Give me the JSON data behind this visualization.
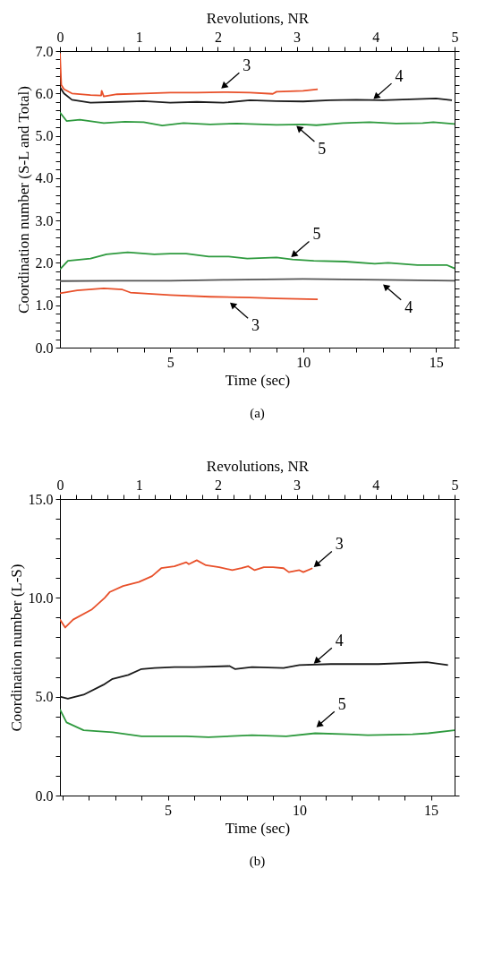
{
  "chart_data": [
    {
      "type": "line",
      "xlabel": "Time (sec)",
      "ylabel": "Coordination number (S-L and Total)",
      "x2label": "Revolutions, NR",
      "xlim": [
        0.85,
        15.7
      ],
      "ylim": [
        0,
        7
      ],
      "x2lim": [
        0,
        5
      ],
      "xticks": [
        {
          "value": 2,
          "label": null
        },
        {
          "value": 3,
          "label": null
        },
        {
          "value": 4,
          "label": null
        },
        5,
        {
          "value": 6,
          "label": null
        },
        {
          "value": 7,
          "label": null
        },
        {
          "value": 8,
          "label": null
        },
        {
          "value": 9,
          "label": null
        },
        10,
        {
          "value": 11,
          "label": null
        },
        {
          "value": 12,
          "label": null
        },
        {
          "value": 13,
          "label": null
        },
        {
          "value": 14,
          "label": null
        },
        15
      ],
      "yticks": [
        {
          "value": 0,
          "label": "0.0"
        },
        {
          "value": 0.2,
          "label": null
        },
        {
          "value": 0.4,
          "label": null
        },
        {
          "value": 0.6,
          "label": null
        },
        {
          "value": 0.8,
          "label": null
        },
        {
          "value": 1,
          "label": "1.0"
        },
        {
          "value": 1.2,
          "label": null
        },
        {
          "value": 1.4,
          "label": null
        },
        {
          "value": 1.6,
          "label": null
        },
        {
          "value": 1.8,
          "label": null
        },
        {
          "value": 2,
          "label": "2.0"
        },
        {
          "value": 2.2,
          "label": null
        },
        {
          "value": 2.4,
          "label": null
        },
        {
          "value": 2.6,
          "label": null
        },
        {
          "value": 2.8,
          "label": null
        },
        {
          "value": 3,
          "label": "3.0"
        },
        {
          "value": 3.2,
          "label": null
        },
        {
          "value": 3.4,
          "label": null
        },
        {
          "value": 3.6,
          "label": null
        },
        {
          "value": 3.8,
          "label": null
        },
        {
          "value": 4,
          "label": "4.0"
        },
        {
          "value": 4.2,
          "label": null
        },
        {
          "value": 4.4,
          "label": null
        },
        {
          "value": 4.6,
          "label": null
        },
        {
          "value": 4.8,
          "label": null
        },
        {
          "value": 5,
          "label": "5.0"
        },
        {
          "value": 5.2,
          "label": null
        },
        {
          "value": 5.4,
          "label": null
        },
        {
          "value": 5.6,
          "label": null
        },
        {
          "value": 5.8,
          "label": null
        },
        {
          "value": 6,
          "label": "6.0"
        },
        {
          "value": 6.2,
          "label": null
        },
        {
          "value": 6.4,
          "label": null
        },
        {
          "value": 6.6,
          "label": null
        },
        {
          "value": 6.8,
          "label": null
        },
        {
          "value": 7,
          "label": "7.0"
        }
      ],
      "x2ticks": [
        0,
        {
          "value": 0.2,
          "label": null
        },
        {
          "value": 0.4,
          "label": null
        },
        {
          "value": 0.6,
          "label": null
        },
        {
          "value": 0.8,
          "label": null
        },
        1,
        {
          "value": 1.2,
          "label": null
        },
        {
          "value": 1.4,
          "label": null
        },
        {
          "value": 1.6,
          "label": null
        },
        {
          "value": 1.8,
          "label": null
        },
        2,
        {
          "value": 2.2,
          "label": null
        },
        {
          "value": 2.4,
          "label": null
        },
        {
          "value": 2.6,
          "label": null
        },
        {
          "value": 2.8,
          "label": null
        },
        3,
        {
          "value": 3.2,
          "label": null
        },
        {
          "value": 3.4,
          "label": null
        },
        {
          "value": 3.6,
          "label": null
        },
        {
          "value": 3.8,
          "label": null
        },
        4,
        {
          "value": 4.2,
          "label": null
        },
        {
          "value": 4.4,
          "label": null
        },
        {
          "value": 4.6,
          "label": null
        },
        {
          "value": 4.8,
          "label": null
        },
        5
      ],
      "series": [
        {
          "color": "#e8502a",
          "x": [
            0.85,
            0.9,
            1.0,
            1.3,
            2.0,
            2.4,
            2.42,
            2.5,
            3.0,
            4.0,
            5.0,
            6.0,
            7.0,
            8.0,
            8.86,
            9.0,
            10.0,
            10.55
          ],
          "values": [
            6.95,
            6.2,
            6.1,
            6.0,
            5.96,
            5.95,
            6.06,
            5.93,
            5.98,
            6.0,
            6.02,
            6.02,
            6.03,
            6.02,
            5.99,
            6.04,
            6.06,
            6.1
          ]
        },
        {
          "color": "#1a1a1a",
          "x": [
            0.85,
            1.0,
            1.3,
            2,
            3,
            4,
            5,
            6,
            7,
            8,
            9,
            10,
            11,
            12,
            13,
            14,
            15,
            15.6
          ],
          "values": [
            6.15,
            6.0,
            5.85,
            5.78,
            5.8,
            5.82,
            5.78,
            5.8,
            5.78,
            5.84,
            5.82,
            5.81,
            5.84,
            5.85,
            5.84,
            5.86,
            5.88,
            5.84
          ]
        },
        {
          "color": "#2e9a3e",
          "x": [
            0.85,
            1.1,
            1.6,
            2.5,
            3.3,
            4.0,
            4.7,
            5.5,
            6.5,
            7.5,
            9.0,
            10.0,
            10.5,
            11.5,
            12.5,
            13.5,
            14.5,
            14.9,
            15.7
          ],
          "values": [
            5.55,
            5.35,
            5.38,
            5.3,
            5.33,
            5.32,
            5.24,
            5.3,
            5.27,
            5.29,
            5.26,
            5.27,
            5.25,
            5.3,
            5.32,
            5.29,
            5.3,
            5.32,
            5.28
          ]
        },
        {
          "color": "#2e9a3e",
          "x": [
            0.85,
            1.15,
            2.0,
            2.6,
            3.4,
            4.4,
            5.0,
            5.6,
            6.45,
            7.2,
            7.9,
            9.0,
            9.6,
            10.4,
            11.6,
            12.7,
            13.2,
            14.3,
            15.4,
            15.7
          ],
          "values": [
            1.85,
            2.05,
            2.1,
            2.2,
            2.25,
            2.2,
            2.22,
            2.22,
            2.15,
            2.15,
            2.1,
            2.13,
            2.08,
            2.05,
            2.03,
            1.98,
            2.0,
            1.95,
            1.95,
            1.87
          ]
        },
        {
          "color": "#555555",
          "x": [
            0.85,
            3,
            5,
            7,
            10,
            13,
            15.7
          ],
          "values": [
            1.57,
            1.58,
            1.58,
            1.6,
            1.62,
            1.6,
            1.58
          ]
        },
        {
          "color": "#e8502a",
          "x": [
            0.85,
            1.5,
            2.5,
            3.2,
            3.5,
            5.0,
            6.5,
            8.0,
            9.0,
            10.55
          ],
          "values": [
            1.28,
            1.35,
            1.4,
            1.37,
            1.3,
            1.24,
            1.2,
            1.18,
            1.16,
            1.14
          ]
        }
      ],
      "annotations": [
        {
          "text": "3",
          "x": 6.87,
          "y": 6.09
        },
        {
          "text": "4",
          "x": 12.6,
          "y": 5.84
        },
        {
          "text": "5",
          "x": 9.7,
          "y": 5.26
        },
        {
          "text": "5",
          "x": 9.5,
          "y": 2.11
        },
        {
          "text": "4",
          "x": 12.96,
          "y": 1.52
        },
        {
          "text": "3",
          "x": 7.2,
          "y": 1.09
        },
        "(a)"
      ]
    },
    {
      "type": "line",
      "xlabel": "Time (sec)",
      "ylabel": "Coordination number (L-S)",
      "x2label": "Revolutions, NR",
      "xlim": [
        0.9,
        15.9
      ],
      "ylim": [
        0,
        15
      ],
      "x2lim": [
        0,
        5
      ],
      "xticks": [
        {
          "value": 1,
          "label": null
        },
        {
          "value": 2,
          "label": null
        },
        {
          "value": 3,
          "label": null
        },
        {
          "value": 4,
          "label": null
        },
        5,
        {
          "value": 6,
          "label": null
        },
        {
          "value": 7,
          "label": null
        },
        {
          "value": 8,
          "label": null
        },
        {
          "value": 9,
          "label": null
        },
        10,
        {
          "value": 11,
          "label": null
        },
        {
          "value": 12,
          "label": null
        },
        {
          "value": 13,
          "label": null
        },
        {
          "value": 14,
          "label": null
        },
        15
      ],
      "yticks": [
        {
          "value": 0,
          "label": "0.0"
        },
        {
          "value": 1,
          "label": null
        },
        {
          "value": 2,
          "label": null
        },
        {
          "value": 3,
          "label": null
        },
        {
          "value": 4,
          "label": null
        },
        {
          "value": 5,
          "label": "5.0"
        },
        {
          "value": 6,
          "label": null
        },
        {
          "value": 7,
          "label": null
        },
        {
          "value": 8,
          "label": null
        },
        {
          "value": 9,
          "label": null
        },
        {
          "value": 10,
          "label": "10.0"
        },
        {
          "value": 11,
          "label": null
        },
        {
          "value": 12,
          "label": null
        },
        {
          "value": 13,
          "label": null
        },
        {
          "value": 14,
          "label": null
        },
        {
          "value": 15,
          "label": "15.0"
        }
      ],
      "x2ticks": [
        0,
        {
          "value": 0.2,
          "label": null
        },
        {
          "value": 0.4,
          "label": null
        },
        {
          "value": 0.6,
          "label": null
        },
        {
          "value": 0.8,
          "label": null
        },
        1,
        {
          "value": 1.2,
          "label": null
        },
        {
          "value": 1.4,
          "label": null
        },
        {
          "value": 1.6,
          "label": null
        },
        {
          "value": 1.8,
          "label": null
        },
        2,
        {
          "value": 2.2,
          "label": null
        },
        {
          "value": 2.4,
          "label": null
        },
        {
          "value": 2.6,
          "label": null
        },
        {
          "value": 2.8,
          "label": null
        },
        3,
        {
          "value": 3.2,
          "label": null
        },
        {
          "value": 3.4,
          "label": null
        },
        {
          "value": 3.6,
          "label": null
        },
        {
          "value": 3.8,
          "label": null
        },
        4,
        {
          "value": 4.2,
          "label": null
        },
        {
          "value": 4.4,
          "label": null
        },
        {
          "value": 4.6,
          "label": null
        },
        {
          "value": 4.8,
          "label": null
        },
        5
      ],
      "series": [
        {
          "color": "#e8502a",
          "x": [
            0.9,
            1.1,
            1.4,
            2.1,
            2.6,
            2.8,
            3.3,
            3.9,
            4.4,
            4.75,
            5.25,
            5.7,
            5.8,
            6.1,
            6.45,
            6.95,
            7.45,
            7.8,
            8.05,
            8.3,
            8.65,
            9.0,
            9.4,
            9.6,
            10.0,
            10.15,
            10.5
          ],
          "values": [
            8.9,
            8.5,
            8.9,
            9.4,
            10.0,
            10.3,
            10.6,
            10.8,
            11.1,
            11.5,
            11.6,
            11.8,
            11.7,
            11.9,
            11.65,
            11.55,
            11.4,
            11.5,
            11.6,
            11.4,
            11.55,
            11.55,
            11.5,
            11.3,
            11.4,
            11.3,
            11.5
          ]
        },
        {
          "color": "#1a1a1a",
          "x": [
            0.9,
            1.2,
            1.8,
            2.55,
            2.9,
            3.5,
            4.0,
            4.5,
            5.25,
            6.0,
            7.35,
            7.55,
            8.2,
            9.4,
            10.0,
            11.2,
            13.0,
            14.85,
            15.65
          ],
          "values": [
            5.0,
            4.9,
            5.1,
            5.6,
            5.9,
            6.1,
            6.4,
            6.45,
            6.5,
            6.5,
            6.55,
            6.4,
            6.5,
            6.45,
            6.6,
            6.65,
            6.65,
            6.75,
            6.6
          ]
        },
        {
          "color": "#2e9a3e",
          "x": [
            0.9,
            1.15,
            1.8,
            2.9,
            4.0,
            5.7,
            6.55,
            8.2,
            9.5,
            10.6,
            11.85,
            12.6,
            14.3,
            14.9,
            15.9
          ],
          "values": [
            4.35,
            3.7,
            3.3,
            3.2,
            3.0,
            3.0,
            2.95,
            3.05,
            3.0,
            3.15,
            3.1,
            3.05,
            3.1,
            3.15,
            3.3
          ]
        }
      ],
      "annotations": [
        {
          "text": "3",
          "x": 10.5,
          "y": 11.5
        },
        {
          "text": "4",
          "x": 10.5,
          "y": 6.62
        },
        {
          "text": "5",
          "x": 10.6,
          "y": 3.4
        },
        "(b)"
      ]
    }
  ]
}
